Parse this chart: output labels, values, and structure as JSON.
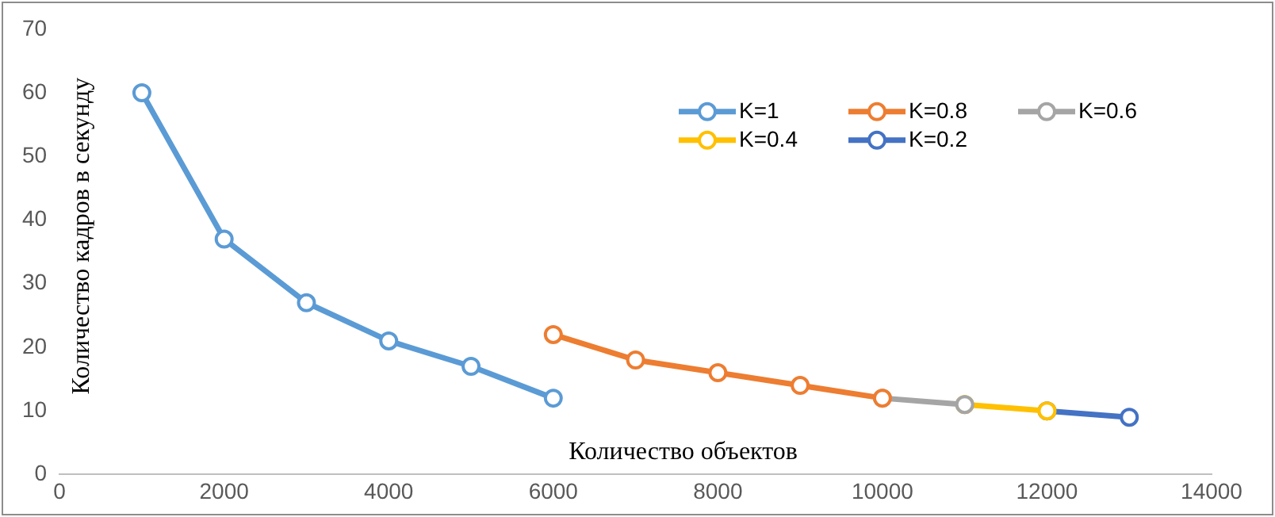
{
  "chart_data": {
    "type": "line",
    "xlabel": "Количество объектов",
    "ylabel": "Количество кадров в секунду",
    "xlim": [
      0,
      14000
    ],
    "xticks": [
      0,
      2000,
      4000,
      6000,
      8000,
      10000,
      12000,
      14000
    ],
    "ylim": [
      0,
      70
    ],
    "yticks": [
      0,
      10,
      20,
      30,
      40,
      50,
      60,
      70
    ],
    "grid": false,
    "legend": "top right",
    "marker": "circle",
    "line_style": "solid",
    "series": [
      {
        "name": "K=1",
        "color": "#5b9bd5",
        "x": [
          1000,
          2000,
          3000,
          4000,
          5000,
          6000
        ],
        "values": [
          60,
          37,
          27,
          21,
          17,
          12
        ]
      },
      {
        "name": "K=0.8",
        "color": "#ed7d31",
        "x": [
          6000,
          7000,
          8000,
          9000,
          10000
        ],
        "values": [
          22,
          18,
          16,
          14,
          12
        ]
      },
      {
        "name": "K=0.6",
        "color": "#a5a5a5",
        "x": [
          10000,
          11000
        ],
        "values": [
          12,
          11
        ]
      },
      {
        "name": "K=0.4",
        "color": "#ffc000",
        "x": [
          11000,
          12000
        ],
        "values": [
          11,
          10
        ]
      },
      {
        "name": "K=0.2",
        "color": "#4472c4",
        "x": [
          12000,
          13000
        ],
        "values": [
          10,
          9
        ]
      }
    ]
  }
}
